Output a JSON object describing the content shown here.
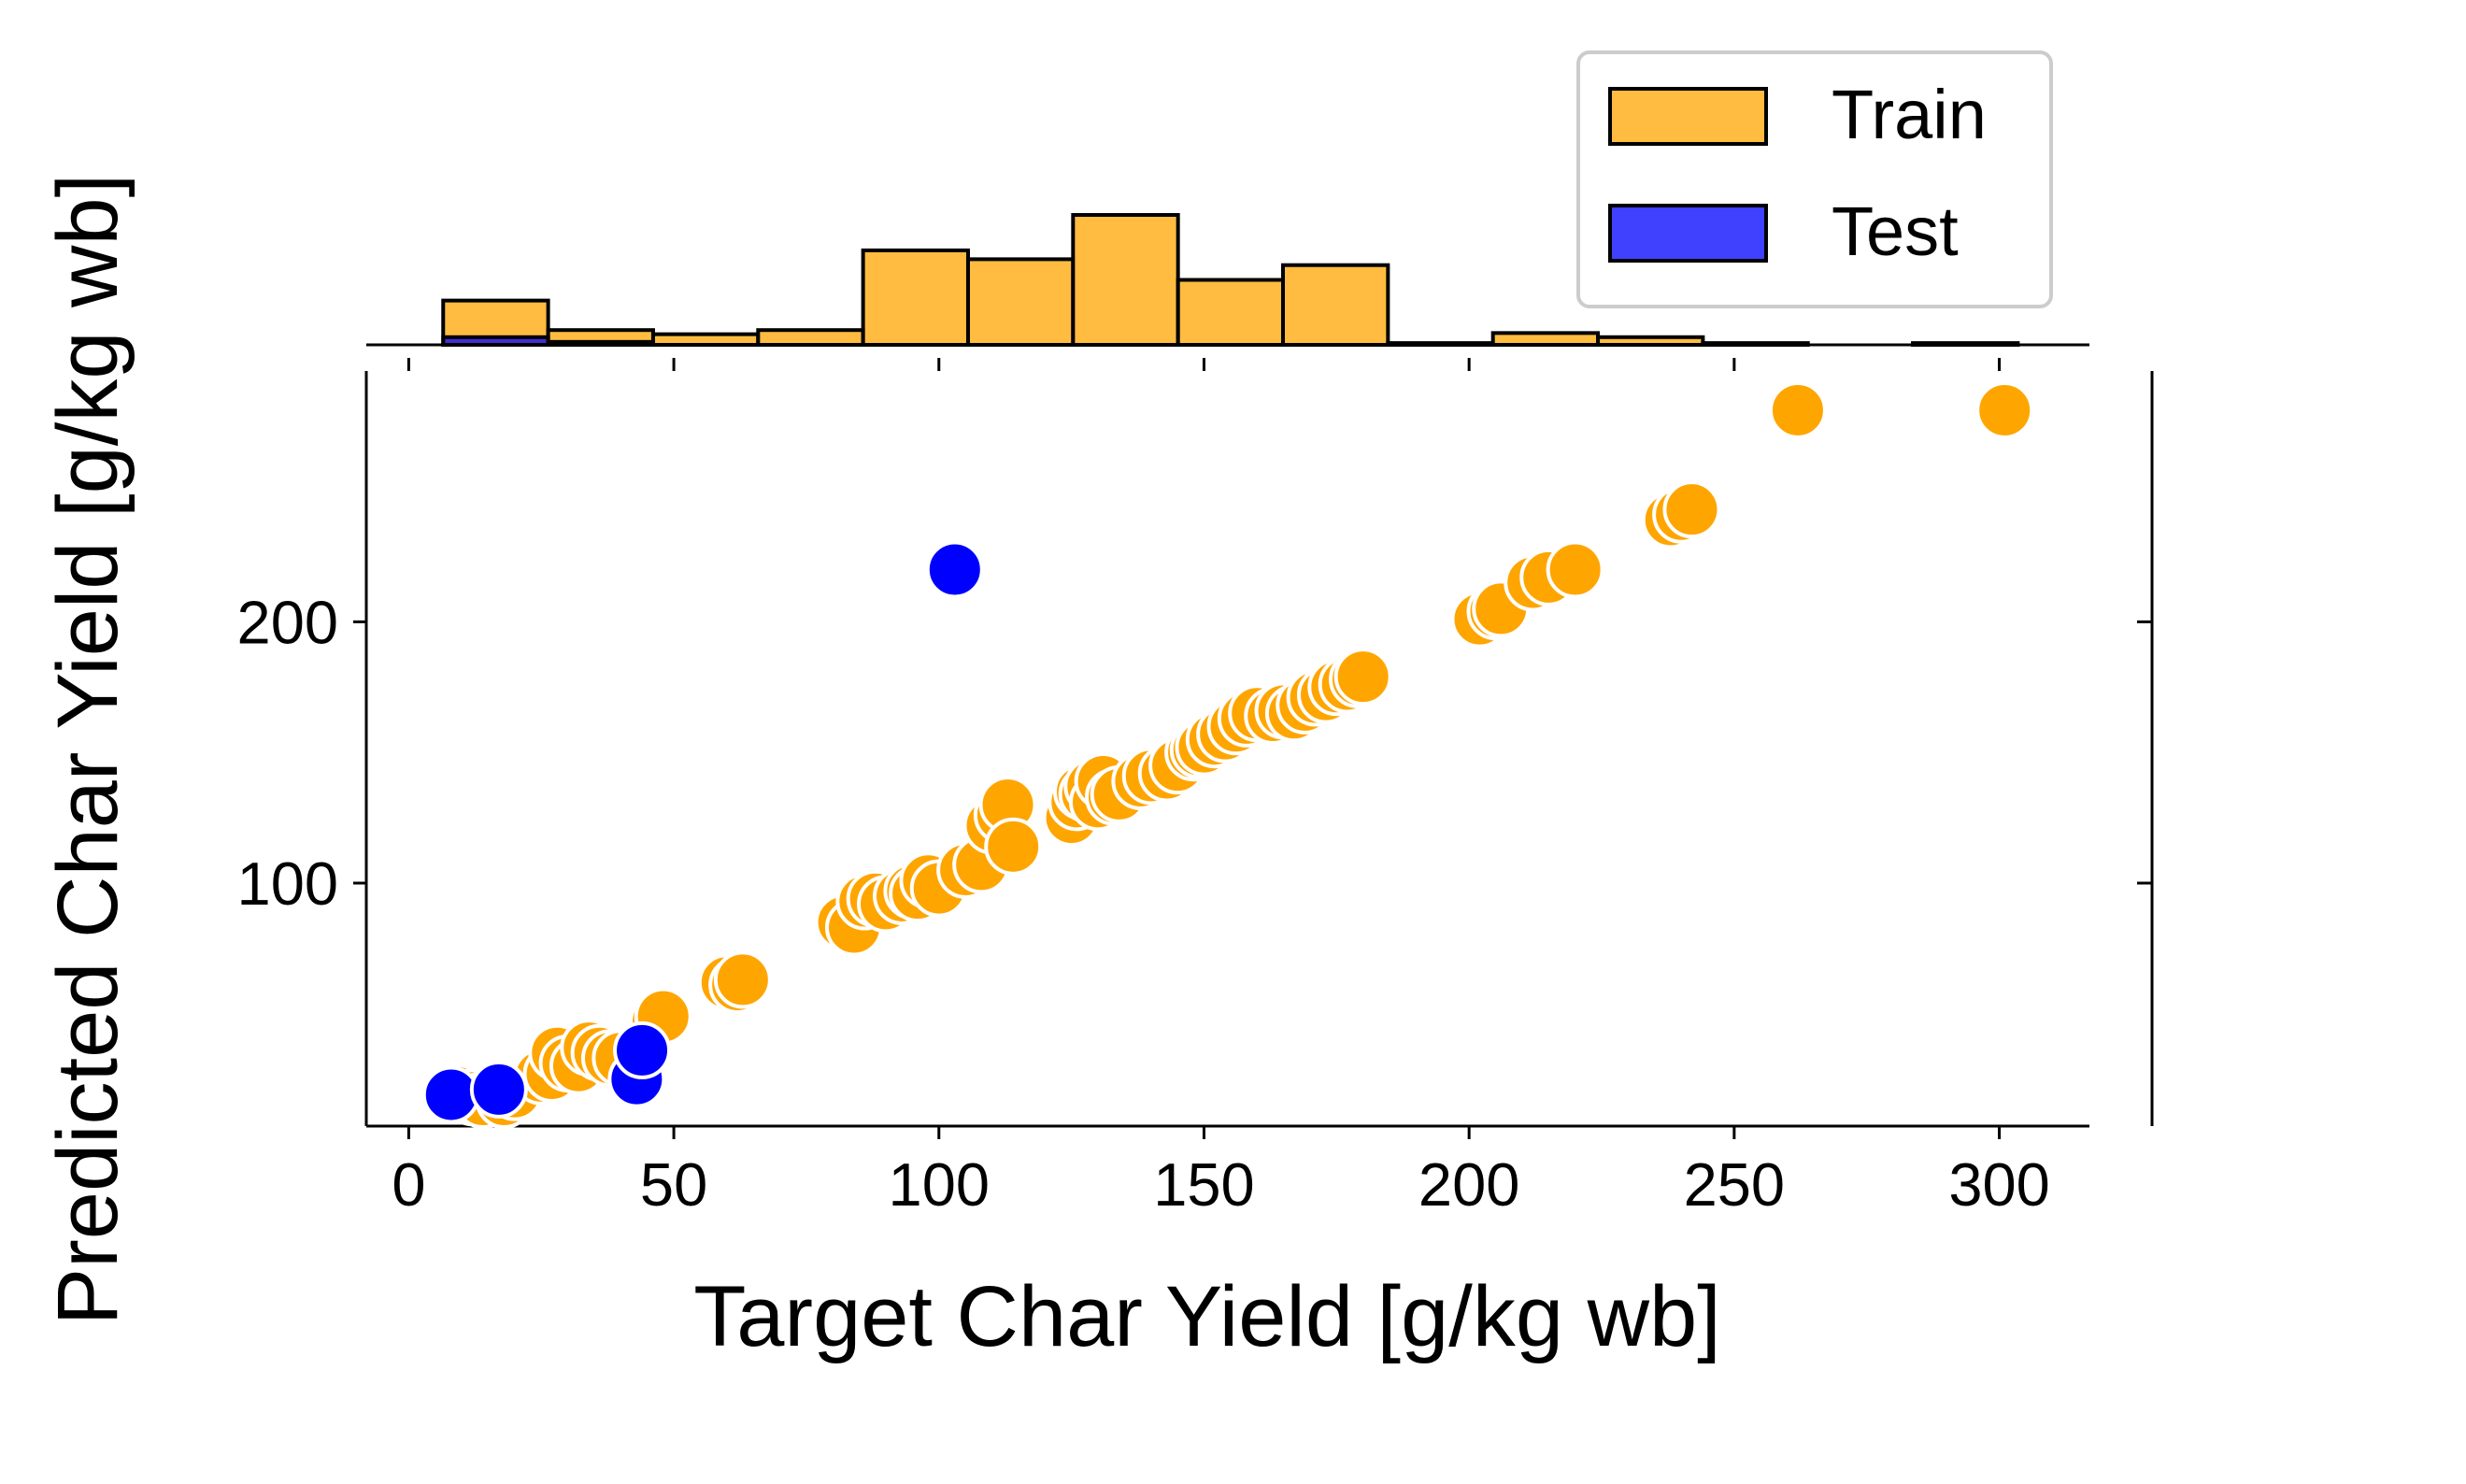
{
  "chart_data": {
    "type": "scatter",
    "xlabel": "Target Char Yield [g/kg wb]",
    "ylabel": "Predicted Char Yield [g/kg wb]",
    "xlim": [
      -8,
      317
    ],
    "ylim": [
      7,
      296
    ],
    "xticks": [
      "0",
      "50",
      "100",
      "150",
      "200",
      "250",
      "300"
    ],
    "yticks": [
      "100",
      "200"
    ],
    "legend": {
      "position": "top-right",
      "entries": [
        "Train",
        "Test"
      ]
    },
    "colors": {
      "Train": "#FFA500",
      "Test": "#0000FF",
      "hist_edge": "#000000"
    },
    "series": [
      {
        "name": "Train",
        "points": [
          [
            9,
            20
          ],
          [
            12,
            18
          ],
          [
            14,
            17
          ],
          [
            18,
            17
          ],
          [
            20,
            20
          ],
          [
            25,
            26
          ],
          [
            27,
            27
          ],
          [
            28,
            35
          ],
          [
            30,
            31
          ],
          [
            32,
            30
          ],
          [
            34,
            37
          ],
          [
            36,
            35
          ],
          [
            38,
            33
          ],
          [
            40,
            33
          ],
          [
            47,
            47
          ],
          [
            48,
            49
          ],
          [
            60,
            62
          ],
          [
            62,
            61
          ],
          [
            63,
            63
          ],
          [
            82,
            85
          ],
          [
            84,
            83
          ],
          [
            86,
            93
          ],
          [
            88,
            94
          ],
          [
            90,
            92
          ],
          [
            93,
            95
          ],
          [
            95,
            97
          ],
          [
            96,
            96
          ],
          [
            98,
            101
          ],
          [
            100,
            98
          ],
          [
            105,
            105
          ],
          [
            108,
            107
          ],
          [
            110,
            122
          ],
          [
            112,
            126
          ],
          [
            113,
            130
          ],
          [
            114,
            114
          ],
          [
            125,
            125
          ],
          [
            126,
            131
          ],
          [
            127,
            135
          ],
          [
            128,
            134
          ],
          [
            129,
            137
          ],
          [
            130,
            131
          ],
          [
            131,
            139
          ],
          [
            133,
            133
          ],
          [
            134,
            134
          ],
          [
            138,
            139
          ],
          [
            140,
            141
          ],
          [
            143,
            142
          ],
          [
            145,
            145
          ],
          [
            148,
            150
          ],
          [
            149,
            151
          ],
          [
            150,
            152
          ],
          [
            152,
            155
          ],
          [
            154,
            157
          ],
          [
            156,
            160
          ],
          [
            158,
            163
          ],
          [
            160,
            165
          ],
          [
            163,
            164
          ],
          [
            165,
            166
          ],
          [
            167,
            165
          ],
          [
            169,
            168
          ],
          [
            171,
            171
          ],
          [
            173,
            172
          ],
          [
            175,
            175
          ],
          [
            177,
            176
          ],
          [
            179,
            178
          ],
          [
            180,
            179
          ],
          [
            202,
            201
          ],
          [
            205,
            204
          ],
          [
            206,
            205
          ],
          [
            212,
            215
          ],
          [
            215,
            217
          ],
          [
            220,
            220
          ],
          [
            238,
            239
          ],
          [
            240,
            241
          ],
          [
            242,
            243
          ],
          [
            262,
            281
          ],
          [
            301,
            281
          ]
        ]
      },
      {
        "name": "Test",
        "points": [
          [
            8,
            19
          ],
          [
            17,
            21
          ],
          [
            43,
            25
          ],
          [
            44,
            36
          ],
          [
            103,
            220
          ]
        ]
      }
    ],
    "histogram": {
      "bin_edges": [
        6.5,
        26.3,
        46.1,
        65.9,
        85.7,
        105.5,
        125.3,
        145.1,
        164.9,
        184.7,
        204.5,
        224.3,
        244.1,
        263.9,
        283.7,
        303.5
      ],
      "train_counts": [
        7.5,
        2.5,
        1.8,
        2.5,
        16,
        14.5,
        22,
        11,
        13.5,
        0.3,
        2,
        1.3,
        0.3,
        0,
        0.3
      ],
      "test_counts": [
        1.3,
        0.5,
        0,
        0,
        0,
        0,
        0,
        0,
        0,
        0,
        0,
        0,
        0,
        0,
        0
      ]
    }
  }
}
